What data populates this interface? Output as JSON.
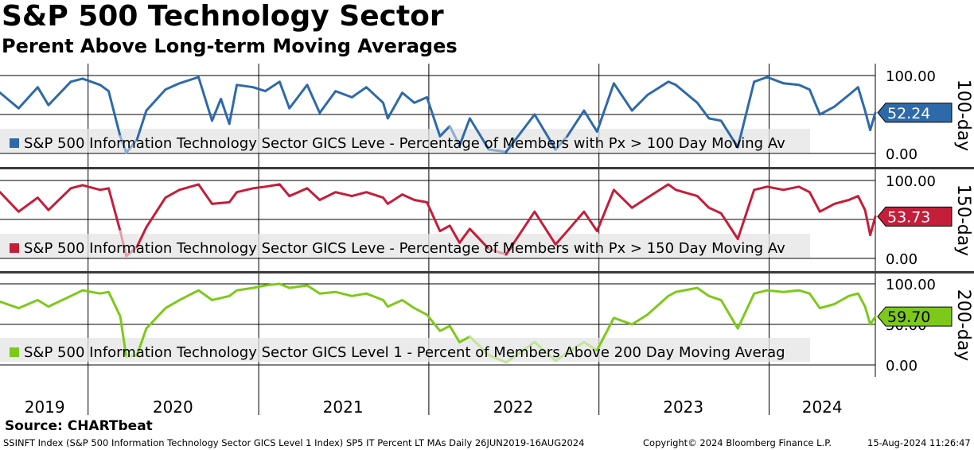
{
  "title": "S&P 500 Technology Sector",
  "subtitle": "Perent Above Long-term Moving Averages",
  "source": "Source: CHARTbeat",
  "footer": {
    "left": "SSINFT Index (S&P 500 Information Technology Sector GICS Level 1 Index) SP5 IT Percent LT MAs  Daily 26JUN2019-16AUG2024",
    "copyright": "Copyright© 2024 Bloomberg Finance L.P.",
    "datetime": "15-Aug-2024 11:26:47"
  },
  "chart_data": {
    "type": "line",
    "x_range": [
      "2019-06-26",
      "2024-08-16"
    ],
    "year_labels": [
      "2019",
      "2020",
      "2021",
      "2022",
      "2023",
      "2024"
    ],
    "y_range": [
      0,
      100
    ],
    "grid": true,
    "panels": [
      {
        "side_label": "100-day",
        "legend": "S&P 500 Information Technology Sector GICS Leve - Percentage of Members with Px > 100 Day Moving Av",
        "color": "#2e6aa9",
        "light_color": "#8eaed1",
        "last_value": "52.24",
        "ticks": [
          "100.00",
          "0.00"
        ],
        "series": [
          [
            "2019-06-26",
            78
          ],
          [
            "2019-08-05",
            58
          ],
          [
            "2019-09-15",
            85
          ],
          [
            "2019-10-08",
            62
          ],
          [
            "2019-11-25",
            92
          ],
          [
            "2019-12-20",
            96
          ],
          [
            "2020-01-27",
            88
          ],
          [
            "2020-02-14",
            80
          ],
          [
            "2020-03-10",
            22
          ],
          [
            "2020-03-23",
            1
          ],
          [
            "2020-04-15",
            18
          ],
          [
            "2020-05-05",
            55
          ],
          [
            "2020-06-15",
            82
          ],
          [
            "2020-07-15",
            90
          ],
          [
            "2020-08-25",
            98
          ],
          [
            "2020-09-23",
            42
          ],
          [
            "2020-10-12",
            70
          ],
          [
            "2020-10-30",
            38
          ],
          [
            "2020-11-15",
            88
          ],
          [
            "2020-12-20",
            85
          ],
          [
            "2021-01-15",
            80
          ],
          [
            "2021-02-15",
            92
          ],
          [
            "2021-03-08",
            58
          ],
          [
            "2021-04-15",
            88
          ],
          [
            "2021-05-12",
            52
          ],
          [
            "2021-06-15",
            80
          ],
          [
            "2021-07-20",
            72
          ],
          [
            "2021-08-20",
            85
          ],
          [
            "2021-09-25",
            65
          ],
          [
            "2021-10-05",
            45
          ],
          [
            "2021-11-05",
            78
          ],
          [
            "2021-12-01",
            65
          ],
          [
            "2021-12-28",
            72
          ],
          [
            "2022-01-25",
            22
          ],
          [
            "2022-02-15",
            35
          ],
          [
            "2022-03-08",
            10
          ],
          [
            "2022-03-30",
            45
          ],
          [
            "2022-05-10",
            5
          ],
          [
            "2022-06-16",
            2
          ],
          [
            "2022-08-16",
            50
          ],
          [
            "2022-09-30",
            5
          ],
          [
            "2022-10-25",
            22
          ],
          [
            "2022-11-30",
            55
          ],
          [
            "2022-12-28",
            28
          ],
          [
            "2023-02-02",
            90
          ],
          [
            "2023-03-13",
            55
          ],
          [
            "2023-04-15",
            75
          ],
          [
            "2023-05-30",
            92
          ],
          [
            "2023-06-15",
            88
          ],
          [
            "2023-07-31",
            65
          ],
          [
            "2023-08-25",
            45
          ],
          [
            "2023-09-20",
            42
          ],
          [
            "2023-10-26",
            8
          ],
          [
            "2023-11-30",
            92
          ],
          [
            "2023-12-28",
            98
          ],
          [
            "2024-02-01",
            90
          ],
          [
            "2024-03-05",
            88
          ],
          [
            "2024-03-28",
            82
          ],
          [
            "2024-04-19",
            50
          ],
          [
            "2024-05-20",
            60
          ],
          [
            "2024-06-20",
            75
          ],
          [
            "2024-07-10",
            85
          ],
          [
            "2024-07-25",
            55
          ],
          [
            "2024-08-05",
            30
          ],
          [
            "2024-08-16",
            52.24
          ]
        ]
      },
      {
        "side_label": "150-day",
        "legend": "S&P 500 Information Technology Sector GICS Leve - Percentage of Members with Px > 150 Day Moving Av",
        "color": "#c41e3a",
        "light_color": "#e0a0ab",
        "last_value": "53.73",
        "ticks": [
          "100.00",
          "0.00"
        ],
        "series": [
          [
            "2019-06-26",
            85
          ],
          [
            "2019-08-05",
            60
          ],
          [
            "2019-09-15",
            78
          ],
          [
            "2019-10-08",
            62
          ],
          [
            "2019-11-25",
            90
          ],
          [
            "2019-12-20",
            94
          ],
          [
            "2020-01-27",
            88
          ],
          [
            "2020-02-14",
            90
          ],
          [
            "2020-03-10",
            35
          ],
          [
            "2020-03-23",
            3
          ],
          [
            "2020-04-15",
            15
          ],
          [
            "2020-05-05",
            40
          ],
          [
            "2020-06-15",
            78
          ],
          [
            "2020-07-15",
            88
          ],
          [
            "2020-08-25",
            95
          ],
          [
            "2020-09-23",
            70
          ],
          [
            "2020-10-30",
            72
          ],
          [
            "2020-11-15",
            85
          ],
          [
            "2020-12-20",
            90
          ],
          [
            "2021-01-15",
            92
          ],
          [
            "2021-02-15",
            95
          ],
          [
            "2021-03-08",
            80
          ],
          [
            "2021-04-15",
            90
          ],
          [
            "2021-05-12",
            75
          ],
          [
            "2021-06-15",
            85
          ],
          [
            "2021-07-20",
            80
          ],
          [
            "2021-08-20",
            85
          ],
          [
            "2021-09-25",
            78
          ],
          [
            "2021-10-05",
            70
          ],
          [
            "2021-11-05",
            82
          ],
          [
            "2021-12-01",
            75
          ],
          [
            "2021-12-28",
            72
          ],
          [
            "2022-01-25",
            35
          ],
          [
            "2022-02-15",
            42
          ],
          [
            "2022-03-08",
            20
          ],
          [
            "2022-03-30",
            38
          ],
          [
            "2022-05-10",
            12
          ],
          [
            "2022-06-16",
            5
          ],
          [
            "2022-08-16",
            60
          ],
          [
            "2022-09-30",
            18
          ],
          [
            "2022-10-25",
            35
          ],
          [
            "2022-11-30",
            60
          ],
          [
            "2022-12-28",
            35
          ],
          [
            "2023-02-02",
            88
          ],
          [
            "2023-03-13",
            65
          ],
          [
            "2023-04-15",
            78
          ],
          [
            "2023-05-30",
            95
          ],
          [
            "2023-06-15",
            88
          ],
          [
            "2023-07-31",
            80
          ],
          [
            "2023-08-25",
            65
          ],
          [
            "2023-09-20",
            58
          ],
          [
            "2023-10-26",
            25
          ],
          [
            "2023-11-30",
            88
          ],
          [
            "2023-12-28",
            92
          ],
          [
            "2024-02-01",
            88
          ],
          [
            "2024-03-05",
            92
          ],
          [
            "2024-03-28",
            85
          ],
          [
            "2024-04-19",
            60
          ],
          [
            "2024-05-20",
            70
          ],
          [
            "2024-06-20",
            75
          ],
          [
            "2024-07-10",
            80
          ],
          [
            "2024-07-25",
            62
          ],
          [
            "2024-08-05",
            30
          ],
          [
            "2024-08-16",
            53.73
          ]
        ]
      },
      {
        "side_label": "200-day",
        "legend": "S&P 500 Information Technology Sector GICS Level 1 - Percent of Members Above 200 Day Moving Averag",
        "color": "#7dc91a",
        "light_color": "#c3e49a",
        "last_value": "59.70",
        "ticks": [
          "100.00",
          "50.00",
          "0.00"
        ],
        "series": [
          [
            "2019-06-26",
            78
          ],
          [
            "2019-08-05",
            70
          ],
          [
            "2019-09-15",
            80
          ],
          [
            "2019-10-08",
            72
          ],
          [
            "2019-11-25",
            85
          ],
          [
            "2019-12-20",
            92
          ],
          [
            "2020-01-27",
            88
          ],
          [
            "2020-02-14",
            90
          ],
          [
            "2020-03-10",
            60
          ],
          [
            "2020-03-23",
            10
          ],
          [
            "2020-04-15",
            12
          ],
          [
            "2020-05-05",
            45
          ],
          [
            "2020-06-15",
            70
          ],
          [
            "2020-07-15",
            80
          ],
          [
            "2020-08-25",
            92
          ],
          [
            "2020-09-23",
            80
          ],
          [
            "2020-10-30",
            85
          ],
          [
            "2020-11-15",
            92
          ],
          [
            "2020-12-20",
            95
          ],
          [
            "2021-01-15",
            98
          ],
          [
            "2021-02-15",
            100
          ],
          [
            "2021-03-08",
            95
          ],
          [
            "2021-04-15",
            98
          ],
          [
            "2021-05-12",
            88
          ],
          [
            "2021-06-15",
            90
          ],
          [
            "2021-07-20",
            85
          ],
          [
            "2021-08-20",
            88
          ],
          [
            "2021-09-25",
            80
          ],
          [
            "2021-10-05",
            72
          ],
          [
            "2021-11-05",
            80
          ],
          [
            "2021-12-01",
            70
          ],
          [
            "2021-12-28",
            62
          ],
          [
            "2022-01-25",
            42
          ],
          [
            "2022-02-15",
            48
          ],
          [
            "2022-03-08",
            28
          ],
          [
            "2022-03-30",
            35
          ],
          [
            "2022-05-10",
            12
          ],
          [
            "2022-06-16",
            3
          ],
          [
            "2022-08-16",
            28
          ],
          [
            "2022-09-30",
            5
          ],
          [
            "2022-10-25",
            15
          ],
          [
            "2022-11-30",
            28
          ],
          [
            "2022-12-28",
            18
          ],
          [
            "2023-02-02",
            58
          ],
          [
            "2023-03-13",
            50
          ],
          [
            "2023-04-15",
            62
          ],
          [
            "2023-05-30",
            85
          ],
          [
            "2023-06-15",
            90
          ],
          [
            "2023-07-31",
            95
          ],
          [
            "2023-08-25",
            85
          ],
          [
            "2023-09-20",
            80
          ],
          [
            "2023-10-26",
            45
          ],
          [
            "2023-11-30",
            88
          ],
          [
            "2023-12-28",
            92
          ],
          [
            "2024-02-01",
            90
          ],
          [
            "2024-03-05",
            92
          ],
          [
            "2024-03-28",
            88
          ],
          [
            "2024-04-19",
            70
          ],
          [
            "2024-05-20",
            75
          ],
          [
            "2024-06-20",
            85
          ],
          [
            "2024-07-10",
            88
          ],
          [
            "2024-07-25",
            72
          ],
          [
            "2024-08-05",
            50
          ],
          [
            "2024-08-16",
            59.7
          ]
        ]
      }
    ]
  }
}
